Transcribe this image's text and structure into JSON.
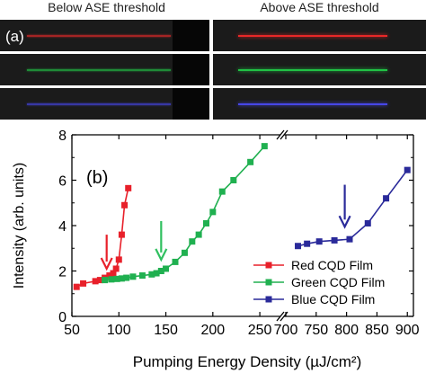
{
  "panel_a": {
    "left_title": "Below ASE threshold",
    "right_title": "Above ASE threshold",
    "label": "(a)",
    "rows": [
      {
        "color": "#ff2a2a"
      },
      {
        "color": "#22d64a"
      },
      {
        "color": "#4b4bff"
      }
    ]
  },
  "chart_data": {
    "type": "line",
    "panel_label": "(b)",
    "xlabel": "Pumping Energy Density (µJ/cm²)",
    "ylabel": "Intensity (arb. units)",
    "ylim": [
      0,
      8
    ],
    "yticks": [
      0,
      2,
      4,
      6,
      8
    ],
    "x_segment_1": {
      "range": [
        50,
        270
      ],
      "ticks": [
        50,
        100,
        150,
        200,
        250
      ]
    },
    "x_segment_2": {
      "range": [
        700,
        910
      ],
      "ticks": [
        700,
        750,
        800,
        850,
        900
      ]
    },
    "grid": false,
    "legend_position": "lower-right",
    "series": [
      {
        "name": "Red CQD Film",
        "color": "#e8202a",
        "x": [
          55,
          62,
          75,
          80,
          85,
          90,
          94,
          97,
          100,
          103,
          106,
          110
        ],
        "y": [
          1.3,
          1.45,
          1.55,
          1.6,
          1.7,
          1.8,
          1.9,
          2.1,
          2.5,
          3.6,
          4.9,
          5.65
        ]
      },
      {
        "name": "Green CQD Film",
        "color": "#20b050",
        "x": [
          85,
          92,
          98,
          103,
          108,
          115,
          125,
          135,
          140,
          145,
          150,
          160,
          170,
          178,
          185,
          193,
          200,
          210,
          222,
          240,
          255
        ],
        "y": [
          1.6,
          1.63,
          1.65,
          1.67,
          1.7,
          1.75,
          1.8,
          1.85,
          1.9,
          2.0,
          2.1,
          2.4,
          2.8,
          3.3,
          3.6,
          4.1,
          4.6,
          5.5,
          6.0,
          6.8,
          7.5
        ]
      },
      {
        "name": "Blue CQD Film",
        "color": "#2a2a9a",
        "x": [
          720,
          735,
          755,
          780,
          805,
          835,
          865,
          900
        ],
        "y": [
          3.1,
          3.2,
          3.3,
          3.35,
          3.4,
          4.1,
          5.2,
          6.45
        ]
      }
    ],
    "threshold_markers": [
      {
        "series": "Red CQD Film",
        "x": 87,
        "y_top": 3.6,
        "y_bottom": 2.1,
        "color": "#e8202a"
      },
      {
        "series": "Green CQD Film",
        "x": 145,
        "y_top": 4.2,
        "y_bottom": 2.5,
        "color": "#30c060"
      },
      {
        "series": "Blue CQD Film",
        "x": 797,
        "y_top": 5.8,
        "y_bottom": 3.95,
        "color": "#2a2a9a"
      }
    ]
  }
}
